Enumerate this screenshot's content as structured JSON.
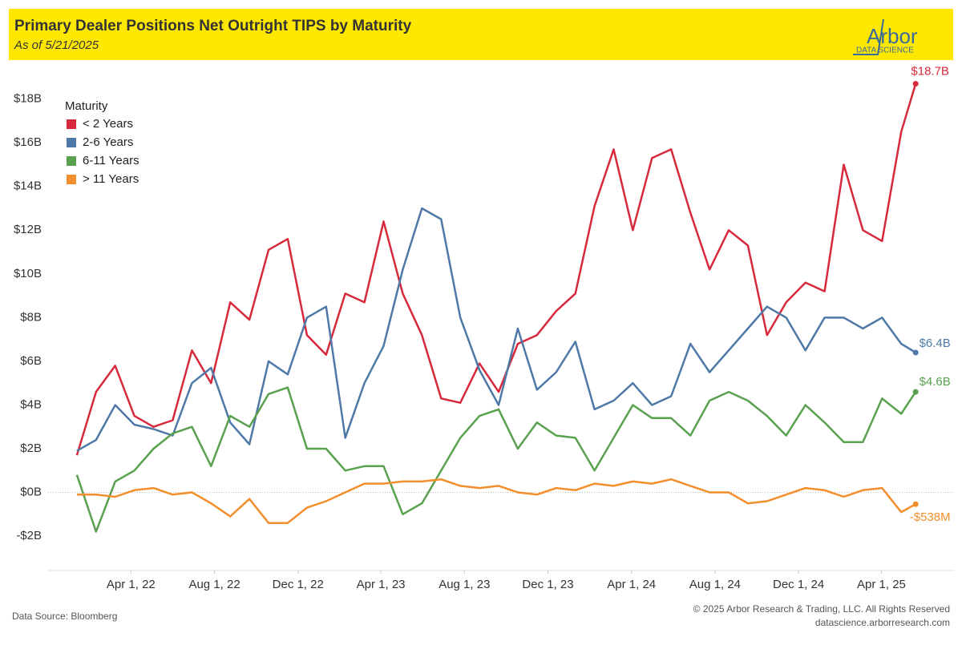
{
  "chart_data": {
    "type": "line",
    "title": "Primary Dealer Positions Net Outright TIPS by Maturity",
    "subtitle": "As of 5/21/2025",
    "logo": {
      "name": "Arbor",
      "tagline": "DATA SCIENCE"
    },
    "legend_title": "Maturity",
    "source": "Data Source: Bloomberg",
    "copyright": "© 2025 Arbor Research & Trading, LLC. All Rights Reserved",
    "url": "datascience.arborresearch.com",
    "x": [
      "2022-01-12",
      "2022-02-09",
      "2022-03-09",
      "2022-04-06",
      "2022-05-04",
      "2022-06-01",
      "2022-06-29",
      "2022-07-27",
      "2022-08-24",
      "2022-09-21",
      "2022-10-19",
      "2022-11-16",
      "2022-12-14",
      "2023-01-11",
      "2023-02-08",
      "2023-03-08",
      "2023-04-05",
      "2023-05-03",
      "2023-05-31",
      "2023-06-28",
      "2023-07-26",
      "2023-08-23",
      "2023-09-20",
      "2023-10-18",
      "2023-11-15",
      "2023-12-13",
      "2024-01-10",
      "2024-02-07",
      "2024-03-06",
      "2024-04-03",
      "2024-05-01",
      "2024-05-29",
      "2024-06-26",
      "2024-07-24",
      "2024-08-21",
      "2024-09-18",
      "2024-10-16",
      "2024-11-13",
      "2024-12-11",
      "2025-01-08",
      "2025-02-05",
      "2025-03-05",
      "2025-04-02",
      "2025-04-30",
      "2025-05-21"
    ],
    "xlim": [
      "2021-12-01",
      "2025-07-16"
    ],
    "xticks": [
      {
        "value": "2022-04-01",
        "label": "Apr 1, 22"
      },
      {
        "value": "2022-08-01",
        "label": "Aug 1, 22"
      },
      {
        "value": "2022-12-01",
        "label": "Dec 1, 22"
      },
      {
        "value": "2023-04-01",
        "label": "Apr 1, 23"
      },
      {
        "value": "2023-08-01",
        "label": "Aug 1, 23"
      },
      {
        "value": "2023-12-01",
        "label": "Dec 1, 23"
      },
      {
        "value": "2024-04-01",
        "label": "Apr 1, 24"
      },
      {
        "value": "2024-08-01",
        "label": "Aug 1, 24"
      },
      {
        "value": "2024-12-01",
        "label": "Dec 1, 24"
      },
      {
        "value": "2025-04-01",
        "label": "Apr 1, 25"
      }
    ],
    "ylim": [
      -3.5,
      19.6
    ],
    "yticks": [
      {
        "value": -2,
        "label": "-$2B"
      },
      {
        "value": 0,
        "label": "$0B"
      },
      {
        "value": 2,
        "label": "$2B"
      },
      {
        "value": 4,
        "label": "$4B"
      },
      {
        "value": 6,
        "label": "$6B"
      },
      {
        "value": 8,
        "label": "$8B"
      },
      {
        "value": 10,
        "label": "$10B"
      },
      {
        "value": 12,
        "label": "$12B"
      },
      {
        "value": 14,
        "label": "$14B"
      },
      {
        "value": 16,
        "label": "$16B"
      },
      {
        "value": 18,
        "label": "$18B"
      }
    ],
    "grid": false,
    "legend_position": "top-left",
    "series": [
      {
        "name": "< 2 Years",
        "color": "#d62a3c",
        "end_label": "$18.7B",
        "values": [
          1.7,
          4.6,
          5.8,
          3.5,
          3.0,
          3.3,
          6.5,
          5.0,
          8.7,
          7.9,
          11.1,
          11.6,
          7.2,
          6.3,
          9.1,
          8.7,
          12.4,
          9.1,
          7.2,
          4.3,
          4.1,
          5.9,
          4.6,
          6.8,
          7.2,
          8.3,
          9.1,
          13.1,
          15.7,
          12.0,
          15.3,
          15.7,
          12.8,
          10.2,
          12.0,
          11.3,
          7.2,
          8.7,
          9.6,
          9.2,
          15.0,
          12.0,
          11.5,
          16.5,
          18.7
        ]
      },
      {
        "name": "2-6 Years",
        "color": "#4e79a7",
        "end_label": "$6.4B",
        "values": [
          1.9,
          2.4,
          4.0,
          3.1,
          2.9,
          2.6,
          5.0,
          5.7,
          3.2,
          2.2,
          6.0,
          5.4,
          8.0,
          8.5,
          2.5,
          5.0,
          6.7,
          10.2,
          13.0,
          12.5,
          8.0,
          5.6,
          4.0,
          7.5,
          4.7,
          5.5,
          6.9,
          3.8,
          4.2,
          5.0,
          4.0,
          4.4,
          6.8,
          5.5,
          6.5,
          7.5,
          8.5,
          8.0,
          6.5,
          8.0,
          8.0,
          7.5,
          8.0,
          6.8,
          6.4
        ]
      },
      {
        "name": "6-11 Years",
        "color": "#59a14f",
        "end_label": "$4.6B",
        "values": [
          0.8,
          -1.8,
          0.5,
          1.0,
          2.0,
          2.7,
          3.0,
          1.2,
          3.5,
          3.0,
          4.5,
          4.8,
          2.0,
          2.0,
          1.0,
          1.2,
          1.2,
          -1.0,
          -0.5,
          1.0,
          2.5,
          3.5,
          3.8,
          2.0,
          3.2,
          2.6,
          2.5,
          1.0,
          2.5,
          4.0,
          3.4,
          3.4,
          2.6,
          4.2,
          4.6,
          4.2,
          3.5,
          2.6,
          4.0,
          3.2,
          2.3,
          2.3,
          4.3,
          3.6,
          4.6
        ]
      },
      {
        "name": "> 11 Years",
        "color": "#f28e2b",
        "end_label": "-$538M",
        "values": [
          -0.1,
          -0.1,
          -0.2,
          0.1,
          0.2,
          -0.1,
          0.0,
          -0.5,
          -1.1,
          -0.3,
          -1.4,
          -1.4,
          -0.7,
          -0.4,
          0.0,
          0.4,
          0.4,
          0.5,
          0.5,
          0.6,
          0.3,
          0.2,
          0.3,
          0.0,
          -0.1,
          0.2,
          0.1,
          0.4,
          0.3,
          0.5,
          0.4,
          0.6,
          0.3,
          0.0,
          0.0,
          -0.5,
          -0.4,
          -0.1,
          0.2,
          0.1,
          -0.2,
          0.1,
          0.2,
          -0.9,
          -0.538
        ]
      }
    ]
  }
}
